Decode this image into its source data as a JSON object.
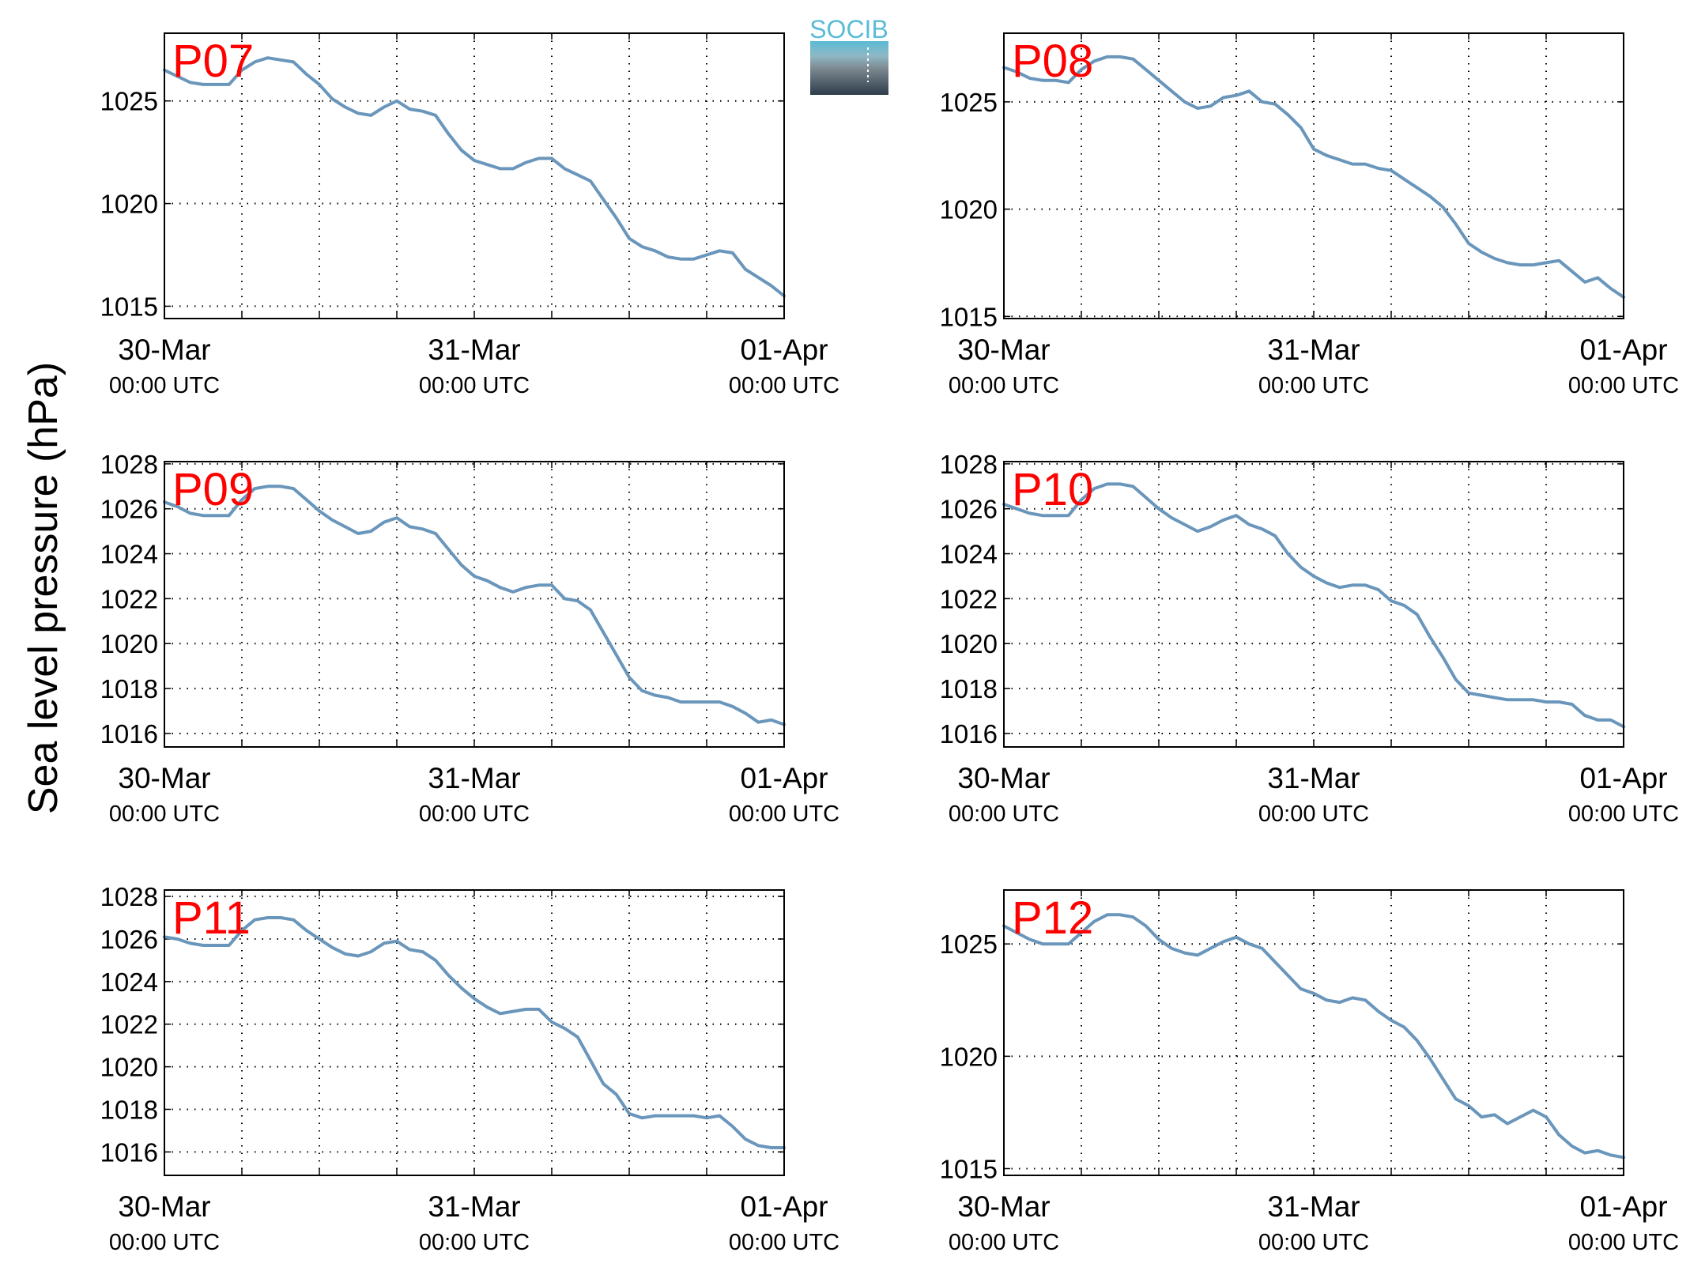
{
  "ylabel": "Sea level pressure (hPa)",
  "logo": {
    "text": "SOCIB",
    "color": "#5bbcd6"
  },
  "series_color": "#6a96bb",
  "label_color": "#ff0000",
  "xticks": [
    {
      "date": "30-Mar",
      "time": "00:00 UTC",
      "hours": 0
    },
    {
      "date": "31-Mar",
      "time": "00:00 UTC",
      "hours": 24
    },
    {
      "date": "01-Apr",
      "time": "00:00 UTC",
      "hours": 48
    }
  ],
  "chart_data": [
    {
      "type": "line",
      "label": "P07",
      "x_hours": [
        0,
        1,
        2,
        3,
        4,
        5,
        6,
        7,
        8,
        9,
        10,
        11,
        12,
        13,
        14,
        15,
        16,
        17,
        18,
        19,
        20,
        21,
        22,
        23,
        24,
        25,
        26,
        27,
        28,
        29,
        30,
        31,
        32,
        33,
        34,
        35,
        36,
        37,
        38,
        39,
        40,
        41,
        42,
        43,
        44,
        45,
        46,
        47,
        48
      ],
      "values": [
        1026.5,
        1026.2,
        1025.9,
        1025.8,
        1025.8,
        1025.8,
        1026.5,
        1026.9,
        1027.1,
        1027.0,
        1026.9,
        1026.3,
        1025.8,
        1025.1,
        1024.7,
        1024.4,
        1024.3,
        1024.7,
        1025.0,
        1024.6,
        1024.5,
        1024.3,
        1023.4,
        1022.6,
        1022.1,
        1021.9,
        1021.7,
        1021.7,
        1022.0,
        1022.2,
        1022.2,
        1021.7,
        1021.4,
        1021.1,
        1020.2,
        1019.3,
        1018.3,
        1017.9,
        1017.7,
        1017.4,
        1017.3,
        1017.3,
        1017.5,
        1017.7,
        1017.6,
        1016.8,
        1016.4,
        1016.0,
        1015.5
      ],
      "yticks": [
        1015,
        1020,
        1025
      ],
      "ylim": [
        1014.4,
        1028.3
      ]
    },
    {
      "type": "line",
      "label": "P08",
      "x_hours": [
        0,
        1,
        2,
        3,
        4,
        5,
        6,
        7,
        8,
        9,
        10,
        11,
        12,
        13,
        14,
        15,
        16,
        17,
        18,
        19,
        20,
        21,
        22,
        23,
        24,
        25,
        26,
        27,
        28,
        29,
        30,
        31,
        32,
        33,
        34,
        35,
        36,
        37,
        38,
        39,
        40,
        41,
        42,
        43,
        44,
        45,
        46,
        47,
        48
      ],
      "values": [
        1026.6,
        1026.4,
        1026.1,
        1026.0,
        1026.0,
        1025.9,
        1026.5,
        1026.9,
        1027.1,
        1027.1,
        1027.0,
        1026.5,
        1026.0,
        1025.5,
        1025.0,
        1024.7,
        1024.8,
        1025.2,
        1025.3,
        1025.5,
        1025.0,
        1024.9,
        1024.4,
        1023.8,
        1022.8,
        1022.5,
        1022.3,
        1022.1,
        1022.1,
        1021.9,
        1021.8,
        1021.4,
        1021.0,
        1020.6,
        1020.1,
        1019.3,
        1018.4,
        1018.0,
        1017.7,
        1017.5,
        1017.4,
        1017.4,
        1017.5,
        1017.6,
        1017.1,
        1016.6,
        1016.8,
        1016.3,
        1015.9
      ],
      "yticks": [
        1015,
        1020,
        1025
      ],
      "ylim": [
        1014.9,
        1028.2
      ]
    },
    {
      "type": "line",
      "label": "P09",
      "x_hours": [
        0,
        1,
        2,
        3,
        4,
        5,
        6,
        7,
        8,
        9,
        10,
        11,
        12,
        13,
        14,
        15,
        16,
        17,
        18,
        19,
        20,
        21,
        22,
        23,
        24,
        25,
        26,
        27,
        28,
        29,
        30,
        31,
        32,
        33,
        34,
        35,
        36,
        37,
        38,
        39,
        40,
        41,
        42,
        43,
        44,
        45,
        46,
        47,
        48
      ],
      "values": [
        1026.3,
        1026.1,
        1025.8,
        1025.7,
        1025.7,
        1025.7,
        1026.4,
        1026.9,
        1027.0,
        1027.0,
        1026.9,
        1026.4,
        1025.9,
        1025.5,
        1025.2,
        1024.9,
        1025.0,
        1025.4,
        1025.6,
        1025.2,
        1025.1,
        1024.9,
        1024.2,
        1023.5,
        1023.0,
        1022.8,
        1022.5,
        1022.3,
        1022.5,
        1022.6,
        1022.6,
        1022.0,
        1021.9,
        1021.5,
        1020.5,
        1019.5,
        1018.5,
        1017.9,
        1017.7,
        1017.6,
        1017.4,
        1017.4,
        1017.4,
        1017.4,
        1017.2,
        1016.9,
        1016.5,
        1016.6,
        1016.4
      ],
      "yticks": [
        1016,
        1018,
        1020,
        1022,
        1024,
        1026,
        1028
      ],
      "ylim": [
        1015.4,
        1028.1
      ]
    },
    {
      "type": "line",
      "label": "P10",
      "x_hours": [
        0,
        1,
        2,
        3,
        4,
        5,
        6,
        7,
        8,
        9,
        10,
        11,
        12,
        13,
        14,
        15,
        16,
        17,
        18,
        19,
        20,
        21,
        22,
        23,
        24,
        25,
        26,
        27,
        28,
        29,
        30,
        31,
        32,
        33,
        34,
        35,
        36,
        37,
        38,
        39,
        40,
        41,
        42,
        43,
        44,
        45,
        46,
        47,
        48
      ],
      "values": [
        1026.2,
        1026.0,
        1025.8,
        1025.7,
        1025.7,
        1025.7,
        1026.4,
        1026.9,
        1027.1,
        1027.1,
        1027.0,
        1026.5,
        1026.0,
        1025.6,
        1025.3,
        1025.0,
        1025.2,
        1025.5,
        1025.7,
        1025.3,
        1025.1,
        1024.8,
        1024.0,
        1023.4,
        1023.0,
        1022.7,
        1022.5,
        1022.6,
        1022.6,
        1022.4,
        1021.9,
        1021.7,
        1021.3,
        1020.3,
        1019.4,
        1018.4,
        1017.8,
        1017.7,
        1017.6,
        1017.5,
        1017.5,
        1017.5,
        1017.4,
        1017.4,
        1017.3,
        1016.8,
        1016.6,
        1016.6,
        1016.3
      ],
      "yticks": [
        1016,
        1018,
        1020,
        1022,
        1024,
        1026,
        1028
      ],
      "ylim": [
        1015.4,
        1028.1
      ]
    },
    {
      "type": "line",
      "label": "P11",
      "x_hours": [
        0,
        1,
        2,
        3,
        4,
        5,
        6,
        7,
        8,
        9,
        10,
        11,
        12,
        13,
        14,
        15,
        16,
        17,
        18,
        19,
        20,
        21,
        22,
        23,
        24,
        25,
        26,
        27,
        28,
        29,
        30,
        31,
        32,
        33,
        34,
        35,
        36,
        37,
        38,
        39,
        40,
        41,
        42,
        43,
        44,
        45,
        46,
        47,
        48
      ],
      "values": [
        1026.1,
        1026.0,
        1025.8,
        1025.7,
        1025.7,
        1025.7,
        1026.4,
        1026.9,
        1027.0,
        1027.0,
        1026.9,
        1026.4,
        1026.0,
        1025.6,
        1025.3,
        1025.2,
        1025.4,
        1025.8,
        1025.9,
        1025.5,
        1025.4,
        1025.0,
        1024.3,
        1023.7,
        1023.2,
        1022.8,
        1022.5,
        1022.6,
        1022.7,
        1022.7,
        1022.1,
        1021.8,
        1021.4,
        1020.3,
        1019.2,
        1018.7,
        1017.8,
        1017.6,
        1017.7,
        1017.7,
        1017.7,
        1017.7,
        1017.6,
        1017.7,
        1017.2,
        1016.6,
        1016.3,
        1016.2,
        1016.2
      ],
      "yticks": [
        1016,
        1018,
        1020,
        1022,
        1024,
        1026,
        1028
      ],
      "ylim": [
        1014.9,
        1028.3
      ]
    },
    {
      "type": "line",
      "label": "P12",
      "x_hours": [
        0,
        1,
        2,
        3,
        4,
        5,
        6,
        7,
        8,
        9,
        10,
        11,
        12,
        13,
        14,
        15,
        16,
        17,
        18,
        19,
        20,
        21,
        22,
        23,
        24,
        25,
        26,
        27,
        28,
        29,
        30,
        31,
        32,
        33,
        34,
        35,
        36,
        37,
        38,
        39,
        40,
        41,
        42,
        43,
        44,
        45,
        46,
        47,
        48
      ],
      "values": [
        1025.8,
        1025.5,
        1025.2,
        1025.0,
        1025.0,
        1025.0,
        1025.5,
        1026.0,
        1026.3,
        1026.3,
        1026.2,
        1025.8,
        1025.2,
        1024.8,
        1024.6,
        1024.5,
        1024.8,
        1025.1,
        1025.3,
        1025.0,
        1024.8,
        1024.2,
        1023.6,
        1023.0,
        1022.8,
        1022.5,
        1022.4,
        1022.6,
        1022.5,
        1022.0,
        1021.6,
        1021.3,
        1020.7,
        1019.9,
        1019.0,
        1018.1,
        1017.8,
        1017.3,
        1017.4,
        1017.0,
        1017.3,
        1017.6,
        1017.3,
        1016.5,
        1016.0,
        1015.7,
        1015.8,
        1015.6,
        1015.5
      ],
      "yticks": [
        1015,
        1020,
        1025
      ],
      "ylim": [
        1014.7,
        1027.4
      ]
    }
  ]
}
